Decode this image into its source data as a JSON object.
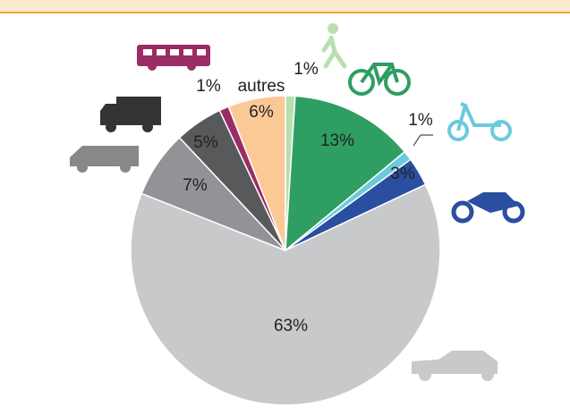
{
  "chart_data": {
    "type": "pie",
    "categories": [
      null,
      null,
      null,
      null,
      null,
      null,
      null,
      null,
      "autres"
    ],
    "values": [
      1,
      13,
      1,
      3,
      63,
      7,
      5,
      1,
      6
    ],
    "value_labels": [
      "1%",
      "13%",
      "1%",
      "3%",
      "63%",
      "7%",
      "5%",
      "1%",
      "6%"
    ],
    "colors": [
      "#b9dfb0",
      "#2f9e63",
      "#6ccadc",
      "#2a4ea0",
      "#c8c9cb",
      "#929396",
      "#58595b",
      "#9b2c66",
      "#fbc996"
    ]
  }
}
